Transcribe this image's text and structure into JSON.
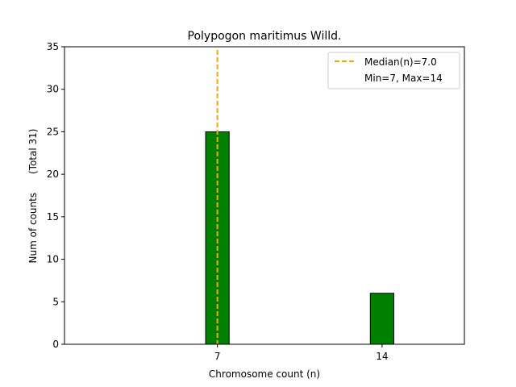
{
  "chart_data": {
    "type": "bar",
    "title": "Polypogon maritimus Willd.",
    "xlabel": "Chromosome count (n)",
    "ylabel": "Num of counts      (Total 31)",
    "xlim": [
      0.5,
      17.5
    ],
    "ylim": [
      0,
      35
    ],
    "yticks": [
      0,
      5,
      10,
      15,
      20,
      25,
      30,
      35
    ],
    "xticks": [
      7,
      14
    ],
    "bar_width": 1,
    "bars": [
      {
        "x": 7,
        "value": 25
      },
      {
        "x": 14,
        "value": 6
      }
    ],
    "median_line": {
      "x": 7,
      "label": "Median(n)=7.0"
    },
    "legend": {
      "placement": "top-right",
      "entries": [
        "Median(n)=7.0",
        "Min=7, Max=14"
      ]
    },
    "colors": {
      "bar": "#008000",
      "bar_edge": "#000000",
      "median": "#FFA500"
    }
  }
}
